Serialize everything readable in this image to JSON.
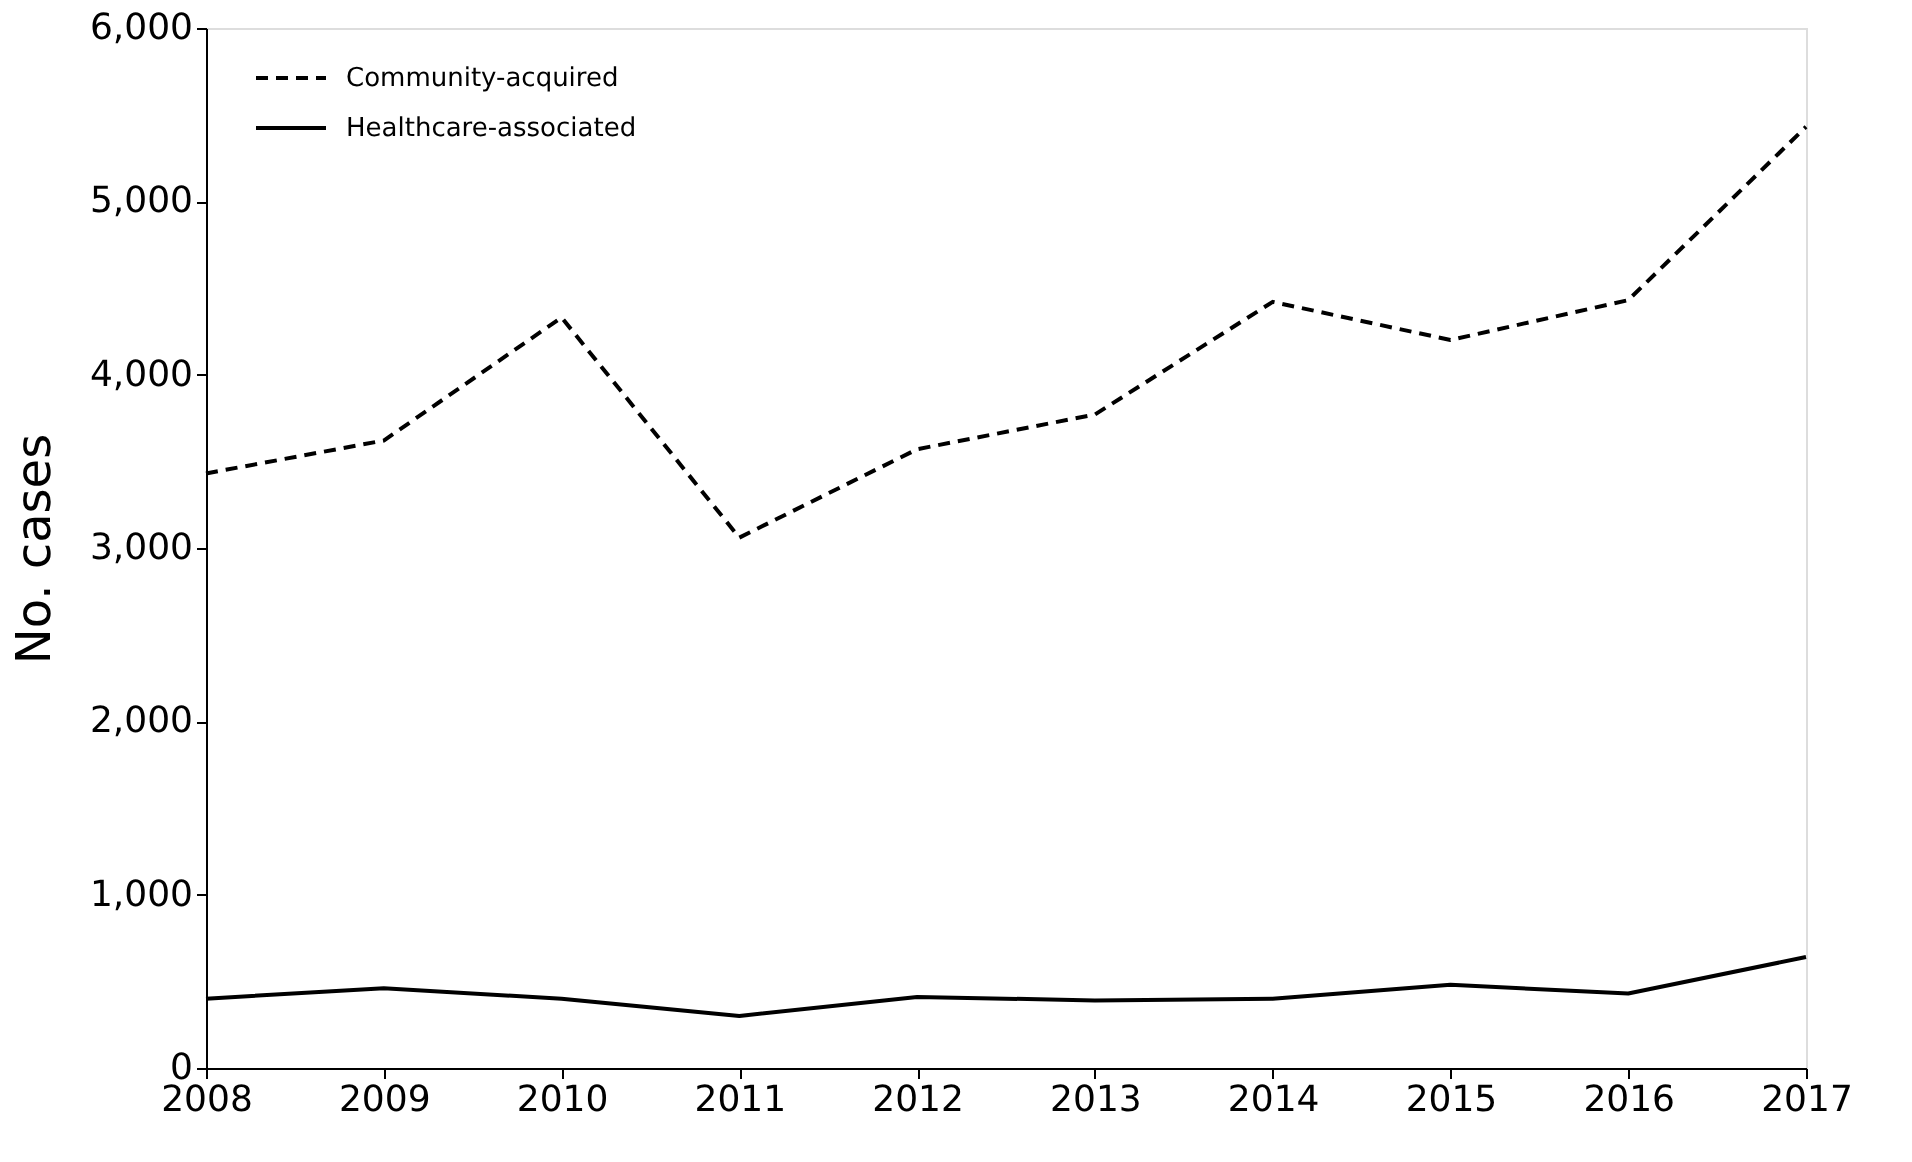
{
  "chart_data": {
    "type": "line",
    "ylabel": "No. cases",
    "x": [
      2008,
      2009,
      2010,
      2011,
      2012,
      2013,
      2014,
      2015,
      2016,
      2017
    ],
    "series": [
      {
        "name": "Community-acquired",
        "color": "#000000",
        "line_style": "dashed",
        "values": [
          3430,
          3620,
          4330,
          3060,
          3570,
          3770,
          4420,
          4200,
          4430,
          5430
        ]
      },
      {
        "name": "Healthcare-associated",
        "color": "#000000",
        "line_style": "solid",
        "values": [
          400,
          460,
          400,
          300,
          410,
          390,
          400,
          480,
          430,
          640
        ]
      }
    ],
    "xlim": [
      2008,
      2017
    ],
    "xticks": [
      2008,
      2009,
      2010,
      2011,
      2012,
      2013,
      2014,
      2015,
      2016,
      2017
    ],
    "ylim": [
      0,
      6000
    ],
    "yticks": [
      0,
      {
        "value": 1000,
        "label": "1,000"
      },
      {
        "value": 2000,
        "label": "2,000"
      },
      {
        "value": 3000,
        "label": "3,000"
      },
      {
        "value": 4000,
        "label": "4,000"
      },
      {
        "value": 5000,
        "label": "5,000"
      },
      {
        "value": 6000,
        "label": "6,000"
      }
    ],
    "grid": false,
    "legend": "top left",
    "marker": "none"
  }
}
